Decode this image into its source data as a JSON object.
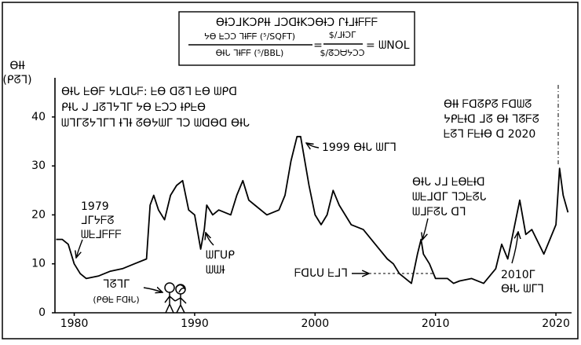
{
  "chart_data": {
    "type": "line",
    "title": "ƟƗƆᒧKƆᑭƗƗ ᒧƆᗡƗKƆƟƗƆ ᒋƗᒧƗᖴᖴᖴ",
    "formula": {
      "left_numerator": "ᔭƟ ᖶƆƆ ᒣƗᖴᖴ (⁵/SQFT)",
      "left_denominator": "ƟƗᒐ ᒣƗᖴᖴ (⁵/BBL)",
      "equals": "=",
      "right_numerator": "$/ᒧƗƆᒥ",
      "right_denominator": "$/ᘔƆᗨᔭƆƆ",
      "result": "= ᗯNOL"
    },
    "y_label": [
      "ƟƗƗ",
      "(ᑭᘔᒣ)"
    ],
    "x": [
      1978.5,
      1979,
      1979.5,
      1980,
      1980.5,
      1981,
      1982,
      1983,
      1984,
      1985,
      1986,
      1986.3,
      1986.6,
      1987,
      1987.5,
      1988,
      1988.5,
      1989,
      1989.5,
      1990,
      1990.5,
      1990.8,
      1991,
      1991.5,
      1992,
      1993,
      1993.5,
      1994,
      1994.5,
      1995,
      1996,
      1997,
      1997.5,
      1998,
      1998.5,
      1998.8,
      1999.5,
      2000,
      2000.5,
      2001,
      2001.5,
      2002,
      2003,
      2004,
      2005,
      2006,
      2006.5,
      2007,
      2008,
      2008.5,
      2008.8,
      2009,
      2009.5,
      2010,
      2011,
      2011.5,
      2012,
      2013,
      2014,
      2015,
      2015.5,
      2016,
      2016.5,
      2017,
      2017.5,
      2018,
      2019,
      2019.5,
      2020,
      2020.3,
      2020.6,
      2021
    ],
    "values": [
      15,
      15,
      14,
      10,
      8,
      7,
      7.5,
      8.5,
      9,
      10,
      11,
      22,
      24,
      21,
      19,
      24,
      26,
      27,
      21,
      20,
      13,
      17,
      22,
      20,
      21,
      20,
      24,
      27,
      23,
      22,
      20,
      21,
      24,
      31,
      36,
      36,
      26,
      20,
      18,
      20,
      25,
      22,
      18,
      17,
      14,
      11,
      10,
      8,
      6,
      12,
      15,
      12,
      10,
      7,
      7,
      6,
      6.5,
      7,
      6,
      9,
      14,
      11,
      17,
      23,
      16,
      17,
      12,
      15,
      18,
      29.5,
      24,
      20.5
    ],
    "color": "#000000",
    "xlim": [
      1978.4,
      2021.3
    ],
    "ylim": [
      0,
      48
    ],
    "xticks": [
      1980,
      1990,
      2000,
      2010,
      2020
    ],
    "yticks": [
      0,
      10,
      20,
      30,
      40
    ],
    "annotations": [
      {
        "lines": [
          "ƟƗᒐ ᖶƟᖴ ᔭᒪᗡᒐᖴ: ᖶƟ ᗡᘔᒣ ᖶƟ ᗯᑭᗡ",
          "ᑭƗᒐ ᒍ ᒧᘔᒣᔭᒣᒥ ᔭƟ ᖶƆƆ ƗᑭᖶƟ",
          "ᗯᒣᒥᘔᔭᒣᒥᒣ ƗᒣƗ ᘔƟᔭᗯᒥ ᒣƆ ᗯᗡƟᗡ ƟƗᒐ"
        ]
      },
      {
        "lines": [
          "1979",
          "ᒧᒥᔭᖴᘔ",
          "ᗯᖶᒧᖴᖴᖴ"
        ]
      },
      {
        "lines": [
          "ᗯᒥᑌᑭ",
          "ᗯᗯƗ"
        ]
      },
      {
        "lines": [
          "1999 ƟƗᒐ ᗯᒥᒣ"
        ]
      },
      {
        "lines": [
          "ƟƗᒐ ᒍᒧ ᖶƟᖶƗᗡ",
          "ᗯᖶᒧᗡᒥ ᒣƆᖶᘔᒐ",
          "ᗯᒧᖴᘔᒐ ᗡᒣ"
        ]
      },
      {
        "lines": [
          "ᖴᗡᒐᑌ ᖶᒧᒣ"
        ]
      },
      {
        "lines": [
          "2010ᒥ",
          "ƟƗᒐ ᗯᒥᒣ"
        ]
      },
      {
        "lines": [
          "ƟƗƗ ᖴᗡᘔᑭᘔ ᖴᗡᗯᘔ",
          "ᔭᑭᖶƗᗡ ᒧᘔ ƟƗ ᒣᘔᖴᘔ",
          "ᖶᘔᒣ ᖴᖶƗƟ ᗡ 2020"
        ]
      },
      {
        "lines": [
          "ᒣᘔᒣᒥ",
          "(ᑭƟᖶ ᖴᗡƗᒐ)"
        ]
      }
    ]
  }
}
